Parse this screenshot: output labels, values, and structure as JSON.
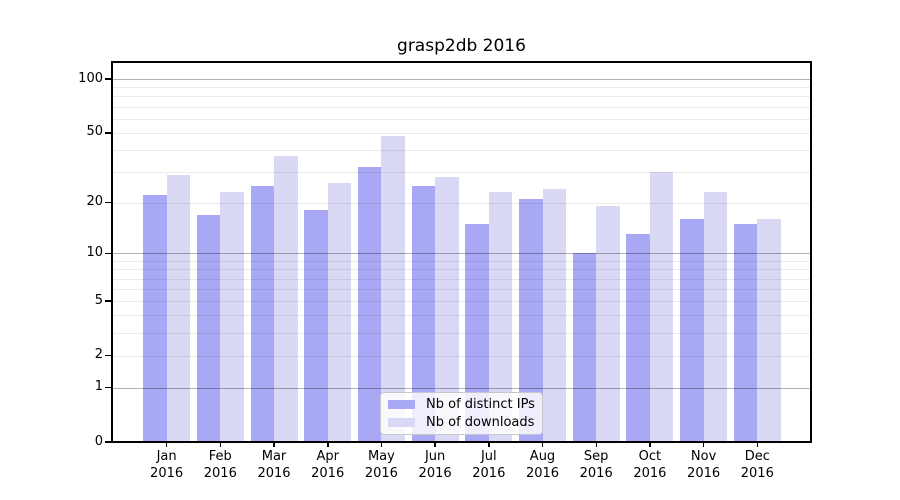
{
  "chart_data": {
    "type": "bar",
    "title": "grasp2db 2016",
    "categories": [
      "Jan",
      "Feb",
      "Mar",
      "Apr",
      "May",
      "Jun",
      "Jul",
      "Aug",
      "Sep",
      "Oct",
      "Nov",
      "Dec"
    ],
    "x_tick_year": "2016",
    "series": [
      {
        "name": "Nb of distinct IPs",
        "color": "#a8a8f5",
        "values": [
          22,
          17,
          25,
          18,
          32,
          25,
          15,
          21,
          10,
          13,
          16,
          15
        ]
      },
      {
        "name": "Nb of downloads",
        "color": "#d9d9f6",
        "values": [
          29,
          23,
          37,
          26,
          48,
          28,
          23,
          24,
          19,
          30,
          23,
          16
        ]
      }
    ],
    "y_axis": {
      "scale": "log10(1+y)",
      "tick_labels": [
        "100",
        "50",
        "20",
        "10",
        "5",
        "2",
        "1",
        "0"
      ],
      "tick_values": [
        100,
        50,
        20,
        10,
        5,
        2,
        1,
        0
      ],
      "major_gridline_values": [
        100,
        10,
        1
      ],
      "minor_gridline_values": [
        90,
        80,
        70,
        60,
        50,
        40,
        30,
        20,
        9,
        8,
        7,
        6,
        5,
        4,
        3,
        2
      ],
      "range": [
        0,
        124
      ]
    },
    "legend": {
      "position": "lower center"
    },
    "grid": true,
    "colors": {
      "background": "#ffffff",
      "spine": "#000000",
      "text": "#000000",
      "legend_border": "#c8c8c8"
    }
  }
}
